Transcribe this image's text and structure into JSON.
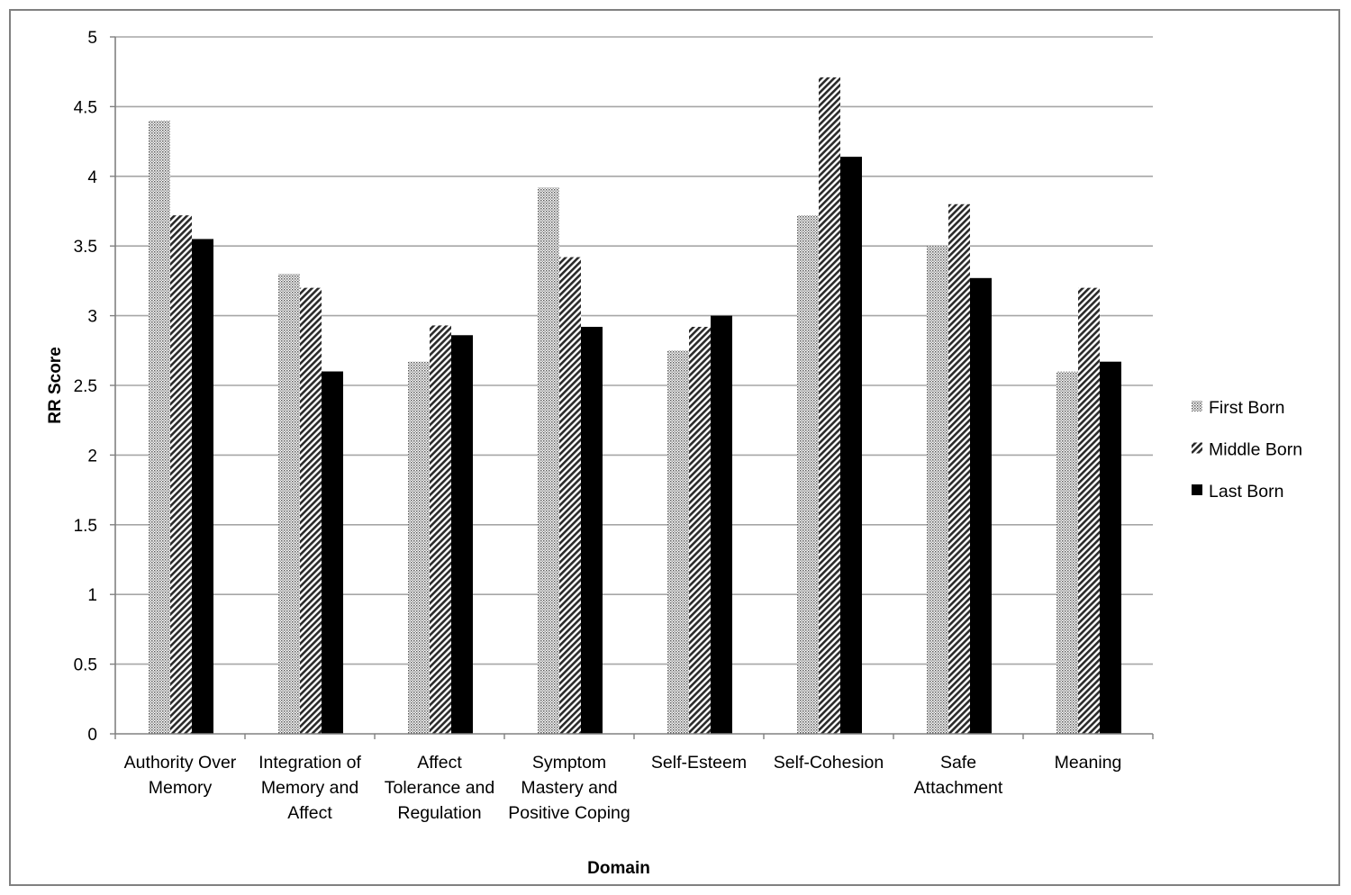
{
  "chart_data": {
    "type": "bar",
    "title": "",
    "xlabel": "Domain",
    "ylabel": "RR Score",
    "ylim": [
      0,
      5
    ],
    "yticks": [
      "0",
      "0.5",
      "1",
      "1.5",
      "2",
      "2.5",
      "3",
      "3.5",
      "4",
      "4.5",
      "5"
    ],
    "grid": true,
    "legend_position": "right",
    "categories": [
      [
        "Authority Over",
        "Memory"
      ],
      [
        "Integration of",
        "Memory and",
        "Affect"
      ],
      [
        "Affect",
        "Tolerance and",
        "Regulation"
      ],
      [
        "Symptom",
        "Mastery and",
        "Positive Coping"
      ],
      [
        "Self-Esteem"
      ],
      [
        "Self-Cohesion"
      ],
      [
        "Safe",
        "Attachment"
      ],
      [
        "Meaning"
      ]
    ],
    "series": [
      {
        "name": "First Born",
        "pattern": "dots",
        "values": [
          4.4,
          3.3,
          2.67,
          3.92,
          2.75,
          3.72,
          3.5,
          2.6
        ]
      },
      {
        "name": "Middle Born",
        "pattern": "hatch",
        "values": [
          3.72,
          3.2,
          2.93,
          3.42,
          2.92,
          4.71,
          3.8,
          3.2
        ]
      },
      {
        "name": "Last Born",
        "pattern": "solid",
        "values": [
          3.55,
          2.6,
          2.86,
          2.92,
          3.0,
          4.14,
          3.27,
          2.67
        ]
      }
    ],
    "colors": {
      "grid": "#a6a6a6",
      "axis": "#808080",
      "bar_solid": "#000000"
    }
  }
}
